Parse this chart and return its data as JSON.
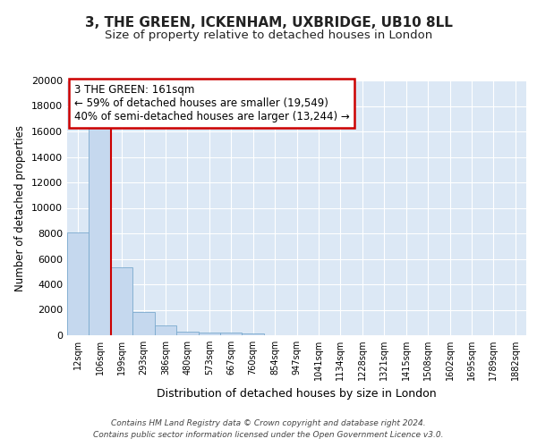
{
  "title": "3, THE GREEN, ICKENHAM, UXBRIDGE, UB10 8LL",
  "subtitle": "Size of property relative to detached houses in London",
  "xlabel": "Distribution of detached houses by size in London",
  "ylabel": "Number of detached properties",
  "categories": [
    "12sqm",
    "106sqm",
    "199sqm",
    "293sqm",
    "386sqm",
    "480sqm",
    "573sqm",
    "667sqm",
    "760sqm",
    "854sqm",
    "947sqm",
    "1041sqm",
    "1134sqm",
    "1228sqm",
    "1321sqm",
    "1415sqm",
    "1508sqm",
    "1602sqm",
    "1695sqm",
    "1789sqm",
    "1882sqm"
  ],
  "bar_values": [
    8100,
    16600,
    5300,
    1850,
    800,
    310,
    230,
    200,
    170,
    0,
    0,
    0,
    0,
    0,
    0,
    0,
    0,
    0,
    0,
    0,
    0
  ],
  "bar_color": "#c5d8ee",
  "bar_edge_color": "#7aaace",
  "background_color": "#dce8f5",
  "grid_color": "#ffffff",
  "vline_x": 1.5,
  "vline_color": "#cc0000",
  "annotation_text": "3 THE GREEN: 161sqm\n← 59% of detached houses are smaller (19,549)\n40% of semi-detached houses are larger (13,244) →",
  "annotation_box_color": "#ffffff",
  "annotation_box_edge": "#cc0000",
  "ylim": [
    0,
    20000
  ],
  "yticks": [
    0,
    2000,
    4000,
    6000,
    8000,
    10000,
    12000,
    14000,
    16000,
    18000,
    20000
  ],
  "footer_line1": "Contains HM Land Registry data © Crown copyright and database right 2024.",
  "footer_line2": "Contains public sector information licensed under the Open Government Licence v3.0.",
  "fig_bg": "#ffffff",
  "title_fontsize": 11,
  "subtitle_fontsize": 9.5
}
